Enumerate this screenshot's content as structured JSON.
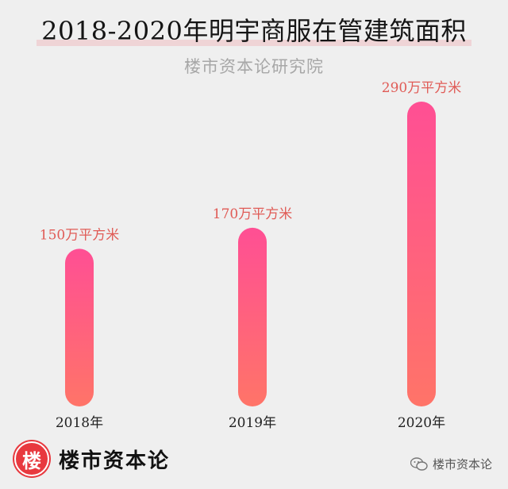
{
  "header": {
    "title": "2018-2020年明宇商服在管建筑面积",
    "subtitle": "楼市资本论研究院"
  },
  "footer": {
    "logo_char": "楼",
    "brand": "楼市资本论",
    "watermark": "楼市资本论"
  },
  "colors": {
    "bar_top": "#ff4f94",
    "bar_bottom": "#ff7468",
    "value_label": "#e05b56",
    "axis_label": "#222222"
  },
  "chart_data": {
    "type": "bar",
    "title": "2018-2020年明宇商服在管建筑面积",
    "xlabel": "",
    "ylabel": "",
    "categories": [
      "2018年",
      "2019年",
      "2020年"
    ],
    "values": [
      150,
      170,
      290
    ],
    "value_labels": [
      "150万平方米",
      "170万平方米",
      "290万平方米"
    ],
    "unit": "万平方米",
    "ylim": [
      0,
      290
    ],
    "grid": false,
    "legend": "none"
  }
}
